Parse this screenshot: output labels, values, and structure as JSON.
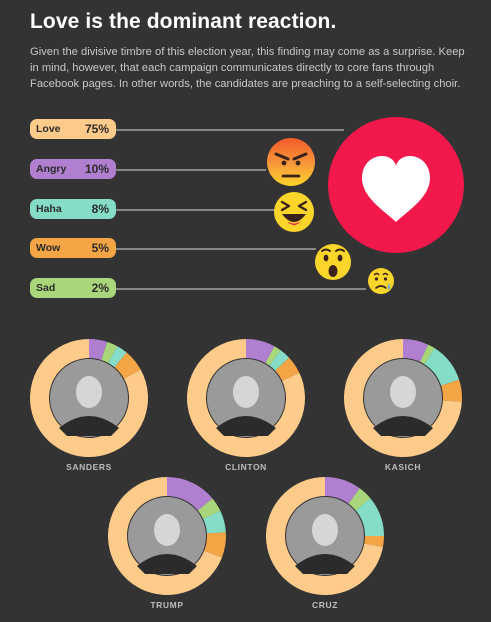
{
  "title": "Love is the dominant reaction.",
  "description": "Given the divisive timbre of this election year, this finding may come as a surprise. Keep in mind, however, that each campaign communicates directly to core fans through Facebook pages. In other words, the candidates are preaching to a self-selecting choir.",
  "colors": {
    "background": "#333333",
    "love": "#fecb8b",
    "angry": "#b07fd0",
    "haha": "#86ddc7",
    "wow": "#f4a545",
    "sad": "#a9d67b",
    "heart_circle": "#f2184c",
    "emoji": "#fcd52a"
  },
  "reactions": [
    {
      "label": "Love",
      "pct": "75%",
      "value": 75,
      "color": "#fecb8b",
      "icon": "heart-icon"
    },
    {
      "label": "Angry",
      "pct": "10%",
      "value": 10,
      "color": "#b07fd0",
      "icon": "angry-face-icon"
    },
    {
      "label": "Haha",
      "pct": "8%",
      "value": 8,
      "color": "#86ddc7",
      "icon": "laughing-face-icon"
    },
    {
      "label": "Wow",
      "pct": "5%",
      "value": 5,
      "color": "#f4a545",
      "icon": "surprised-face-icon"
    },
    {
      "label": "Sad",
      "pct": "2%",
      "value": 2,
      "color": "#a9d67b",
      "icon": "sad-face-icon"
    }
  ],
  "chart_data": {
    "type": "pie",
    "variant": "donut",
    "categories": [
      "Angry",
      "Sad",
      "Haha",
      "Wow",
      "Love"
    ],
    "series": [
      {
        "name": "SANDERS",
        "values": [
          5,
          3,
          3,
          6,
          83
        ]
      },
      {
        "name": "CLINTON",
        "values": [
          8,
          2,
          3,
          5,
          82
        ]
      },
      {
        "name": "KASICH",
        "values": [
          7,
          2,
          11,
          6,
          74
        ]
      },
      {
        "name": "TRUMP",
        "values": [
          14,
          4,
          6,
          7,
          69
        ]
      },
      {
        "name": "CRUZ",
        "values": [
          10,
          4,
          11,
          3,
          72
        ]
      }
    ]
  }
}
